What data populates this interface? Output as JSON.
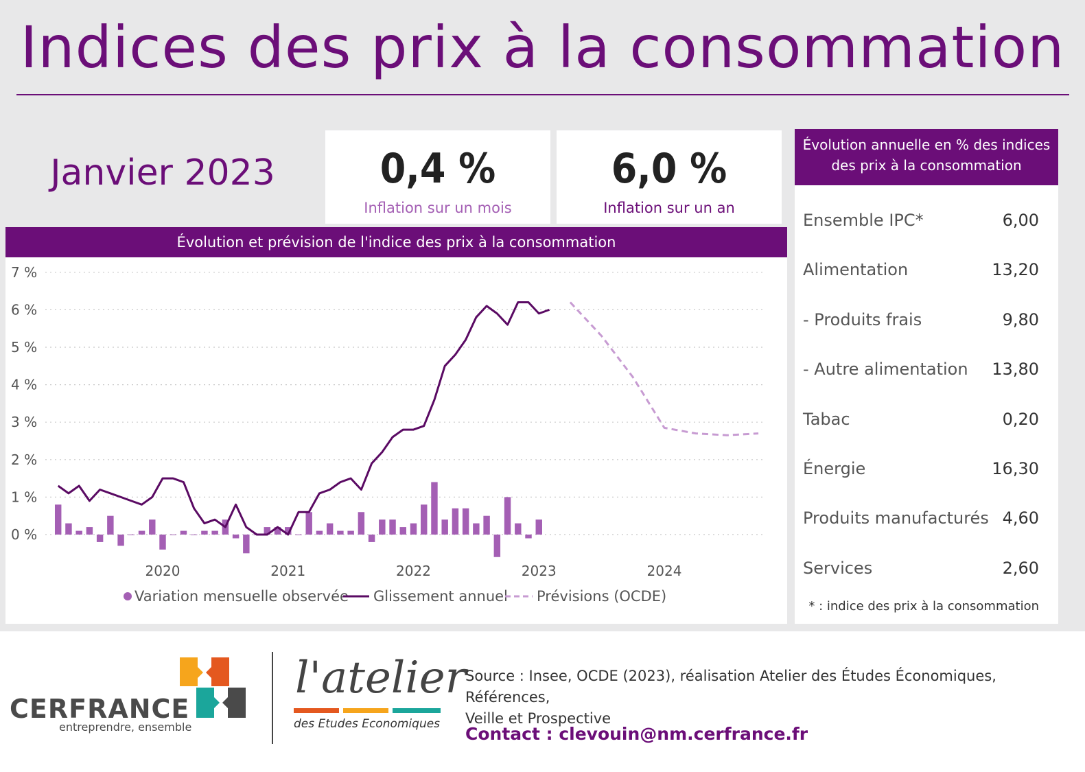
{
  "page": {
    "title": "Indices des prix à la consommation",
    "month": "Janvier 2023",
    "colors": {
      "purple": "#6b0e78",
      "bar": "#a45fb4",
      "forecast": "#c79bd2",
      "light_purple_label": "#a45fb4",
      "background": "#e8e8e9"
    }
  },
  "kpis": [
    {
      "value": "0,4 %",
      "label": "Inflation sur un mois",
      "label_color": "#a45fb4"
    },
    {
      "value": "6,0 %",
      "label": "Inflation sur un an",
      "label_color": "#6b0e78"
    }
  ],
  "chart_data": {
    "type": "bar",
    "title": "Évolution et prévision de l'indice des prix à la consommation",
    "xlabel": "",
    "ylabel": "",
    "ylim": [
      -0.6,
      7
    ],
    "yticks": [
      0,
      1,
      2,
      3,
      4,
      5,
      6,
      7
    ],
    "ytick_labels": [
      "0 %",
      "1 %",
      "2 %",
      "3 %",
      "4 %",
      "5 %",
      "6 %",
      "7 %"
    ],
    "xticks": [
      2020,
      2021,
      2022,
      2023,
      2024
    ],
    "grid": true,
    "legend_position": "bottom",
    "series": [
      {
        "name": "Variation mensuelle observée",
        "kind": "bar",
        "color": "#a45fb4",
        "x_start": "2019-03",
        "values": [
          0.8,
          0.3,
          0.1,
          0.2,
          -0.2,
          0.5,
          -0.3,
          0.0,
          0.1,
          0.4,
          -0.4,
          0.0,
          0.1,
          0.0,
          0.1,
          0.1,
          0.4,
          -0.1,
          -0.5,
          0.0,
          0.2,
          0.2,
          0.2,
          0.0,
          0.6,
          0.1,
          0.3,
          0.1,
          0.1,
          0.6,
          -0.2,
          0.4,
          0.4,
          0.2,
          0.3,
          0.8,
          1.4,
          0.4,
          0.7,
          0.7,
          0.3,
          0.5,
          -0.6,
          1.0,
          0.3,
          -0.1,
          0.4
        ]
      },
      {
        "name": "Glissement annuel",
        "kind": "line",
        "color": "#5a0a63",
        "x_start": "2019-03",
        "values": [
          1.3,
          1.1,
          1.3,
          0.9,
          1.2,
          1.1,
          1.0,
          0.9,
          0.8,
          1.0,
          1.5,
          1.5,
          1.4,
          0.7,
          0.3,
          0.4,
          0.2,
          0.8,
          0.2,
          0.0,
          0.0,
          0.2,
          0.0,
          0.6,
          0.6,
          1.1,
          1.2,
          1.4,
          1.5,
          1.2,
          1.9,
          2.2,
          2.6,
          2.8,
          2.8,
          2.9,
          3.6,
          4.5,
          4.8,
          5.2,
          5.8,
          6.1,
          5.9,
          5.6,
          6.2,
          6.2,
          5.9,
          6.0
        ]
      },
      {
        "name": "Prévisions (OCDE)",
        "kind": "line-dashed",
        "color": "#c79bd2",
        "x": [
          "2023-04",
          "2023-07",
          "2023-10",
          "2024-01",
          "2024-04",
          "2024-07",
          "2024-10"
        ],
        "values": [
          6.2,
          5.3,
          4.2,
          2.85,
          2.7,
          2.65,
          2.7
        ]
      }
    ]
  },
  "table": {
    "header": [
      "Évolution annuelle en % des indices",
      "des prix à la consommation"
    ],
    "rows": [
      {
        "label": "Ensemble IPC*",
        "value": "6,00"
      },
      {
        "label": "Alimentation",
        "value": "13,20"
      },
      {
        "label": "- Produits frais",
        "value": "9,80"
      },
      {
        "label": "- Autre alimentation",
        "value": "13,80"
      },
      {
        "label": "Tabac",
        "value": "0,20"
      },
      {
        "label": "Énergie",
        "value": "16,30"
      },
      {
        "label": "Produits manufacturés",
        "value": "4,60"
      },
      {
        "label": "Services",
        "value": "2,60"
      }
    ],
    "note": "* : indice des prix à la consommation"
  },
  "footer": {
    "cerfrance_name": "CERFRANCE",
    "cerfrance_tagline": "entreprendre, ensemble",
    "atelier_name": "l'atelier",
    "atelier_tagline": "des Etudes Economiques",
    "source_line1": "Source : Insee, OCDE (2023), réalisation Atelier des Études Économiques, Références,",
    "source_line2": "Veille et Prospective",
    "contact": "Contact : clevouin@nm.cerfrance.fr",
    "logo_colors": [
      "#f6a51c",
      "#e4581f",
      "#1ba69b",
      "#4a4a4a"
    ]
  }
}
